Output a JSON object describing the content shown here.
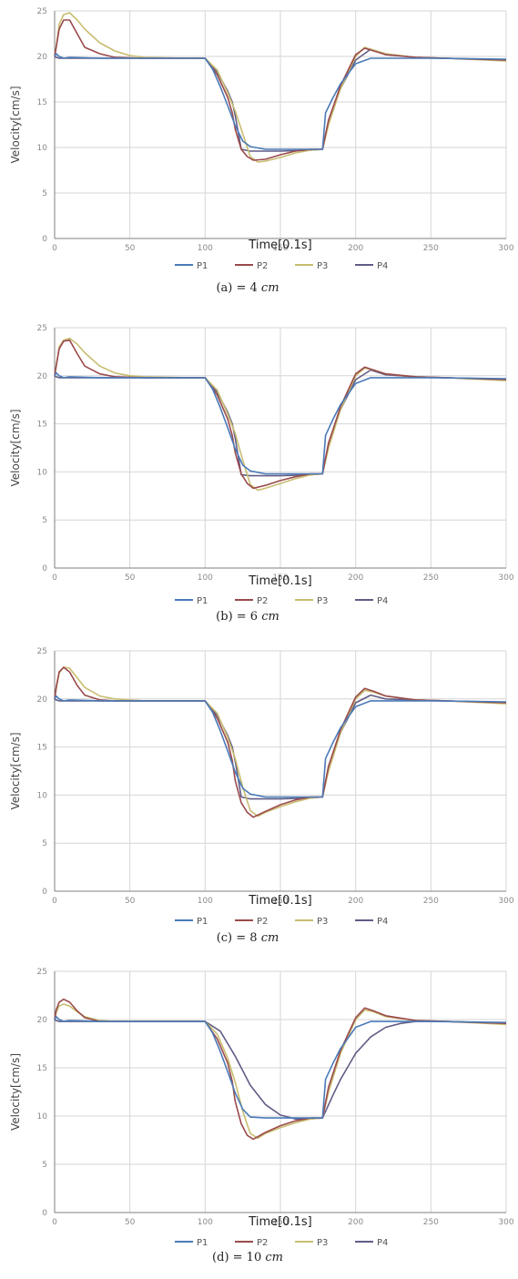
{
  "colors": {
    "P1": "#4a7ab8",
    "P2": "#9a4a4c",
    "P3": "#c8bd70",
    "P4": "#605d86",
    "grid": "#d6d6d6",
    "axis": "#7f7f7f",
    "tick_text": "#8a8a8a",
    "label_text": "#222222"
  },
  "chart_data": [
    {
      "type": "line",
      "caption": "(a)  = 4 𝑐𝑚",
      "xlabel": "Time[0.1s]",
      "ylabel": "Velocity[cm/s]",
      "xlim": [
        0,
        300
      ],
      "ylim": [
        0,
        25
      ],
      "xticks": [
        0,
        50,
        100,
        150,
        200,
        250,
        300
      ],
      "yticks": [
        0,
        5,
        10,
        15,
        20,
        25
      ],
      "grid": true,
      "legend_position": "bottom",
      "series": [
        {
          "name": "P1",
          "x": [
            0,
            1,
            3,
            6,
            10,
            30,
            60,
            90,
            100,
            105,
            110,
            115,
            120,
            125,
            130,
            140,
            150,
            160,
            170,
            178,
            180,
            185,
            190,
            200,
            210,
            250,
            300
          ],
          "y": [
            20,
            20.3,
            20,
            19.8,
            19.9,
            19.8,
            19.8,
            19.8,
            19.8,
            18.6,
            16.7,
            14.6,
            12.4,
            10.7,
            10.1,
            9.8,
            9.8,
            9.8,
            9.8,
            9.8,
            13.8,
            15.5,
            17,
            19.2,
            19.8,
            19.8,
            19.7
          ]
        },
        {
          "name": "P2",
          "x": [
            0,
            1,
            3,
            6,
            10,
            15,
            20,
            30,
            40,
            60,
            90,
            100,
            108,
            115,
            118,
            120,
            124,
            128,
            132,
            140,
            150,
            160,
            170,
            178,
            182,
            190,
            200,
            206,
            212,
            220,
            240,
            260,
            300
          ],
          "y": [
            20,
            21,
            23,
            24,
            24,
            22.5,
            21,
            20.3,
            19.9,
            19.8,
            19.8,
            19.8,
            18,
            15.5,
            13.8,
            12,
            9.8,
            9,
            8.6,
            8.7,
            9.2,
            9.6,
            9.8,
            9.8,
            13,
            16.8,
            20.2,
            20.9,
            20.6,
            20.2,
            19.9,
            19.8,
            19.6
          ]
        },
        {
          "name": "P3",
          "x": [
            0,
            1,
            3,
            6,
            10,
            15,
            20,
            30,
            40,
            50,
            60,
            90,
            100,
            108,
            115,
            120,
            125,
            130,
            135,
            140,
            150,
            160,
            170,
            178,
            182,
            190,
            200,
            206,
            212,
            220,
            240,
            260,
            300
          ],
          "y": [
            20,
            21,
            23.5,
            24.6,
            24.8,
            24,
            23,
            21.5,
            20.6,
            20.1,
            19.9,
            19.8,
            19.8,
            18.5,
            16,
            14,
            11.5,
            9,
            8.4,
            8.5,
            8.9,
            9.4,
            9.7,
            9.8,
            12.5,
            16.5,
            20,
            21,
            20.7,
            20.3,
            19.9,
            19.8,
            19.5
          ]
        },
        {
          "name": "P4",
          "x": [
            0,
            1,
            3,
            6,
            10,
            40,
            90,
            100,
            108,
            115,
            118,
            120,
            124,
            130,
            150,
            170,
            178,
            182,
            190,
            200,
            210,
            220,
            240,
            260,
            300
          ],
          "y": [
            20,
            19.9,
            19.8,
            19.8,
            19.8,
            19.8,
            19.8,
            19.8,
            18.3,
            16.2,
            15,
            13.5,
            9.8,
            9.6,
            9.6,
            9.7,
            9.8,
            13,
            16.5,
            19.6,
            20.8,
            20.2,
            19.9,
            19.8,
            19.6
          ]
        }
      ]
    },
    {
      "type": "line",
      "caption": "(b)  = 6 𝑐𝑚",
      "xlabel": "Time[0.1s]",
      "ylabel": "Velocity[cm/s]",
      "xlim": [
        0,
        300
      ],
      "ylim": [
        0,
        25
      ],
      "xticks": [
        0,
        50,
        100,
        150,
        200,
        250,
        300
      ],
      "yticks": [
        0,
        5,
        10,
        15,
        20,
        25
      ],
      "grid": true,
      "legend_position": "bottom",
      "series": [
        {
          "name": "P1",
          "x": [
            0,
            1,
            3,
            6,
            10,
            30,
            60,
            90,
            100,
            105,
            110,
            115,
            120,
            125,
            130,
            140,
            150,
            160,
            170,
            178,
            180,
            185,
            190,
            200,
            210,
            250,
            300
          ],
          "y": [
            20,
            20.3,
            20,
            19.8,
            19.9,
            19.8,
            19.8,
            19.8,
            19.8,
            18.6,
            16.7,
            14.6,
            12.4,
            10.7,
            10.1,
            9.8,
            9.8,
            9.8,
            9.8,
            9.8,
            13.8,
            15.5,
            17,
            19.2,
            19.8,
            19.8,
            19.7
          ]
        },
        {
          "name": "P2",
          "x": [
            0,
            1,
            3,
            6,
            10,
            15,
            20,
            30,
            40,
            60,
            90,
            100,
            108,
            115,
            118,
            120,
            124,
            128,
            132,
            140,
            150,
            160,
            170,
            178,
            182,
            190,
            200,
            206,
            212,
            220,
            240,
            260,
            300
          ],
          "y": [
            20,
            21,
            22.8,
            23.6,
            23.7,
            22.3,
            21,
            20.2,
            19.9,
            19.8,
            19.8,
            19.8,
            18,
            15.5,
            13.8,
            12,
            9.8,
            8.8,
            8.3,
            8.6,
            9.1,
            9.5,
            9.8,
            9.8,
            13,
            16.8,
            20.2,
            20.9,
            20.6,
            20.2,
            19.9,
            19.8,
            19.6
          ]
        },
        {
          "name": "P3",
          "x": [
            0,
            1,
            3,
            6,
            10,
            15,
            20,
            30,
            40,
            50,
            60,
            90,
            100,
            108,
            115,
            120,
            125,
            130,
            135,
            140,
            150,
            160,
            170,
            178,
            182,
            190,
            200,
            206,
            212,
            220,
            240,
            260,
            300
          ],
          "y": [
            20,
            21,
            23,
            23.7,
            23.9,
            23.3,
            22.4,
            21,
            20.3,
            20,
            19.9,
            19.8,
            19.8,
            18.5,
            16,
            14,
            11.2,
            8.7,
            8.1,
            8.3,
            8.8,
            9.3,
            9.7,
            9.8,
            12.5,
            16.5,
            20,
            20.8,
            20.6,
            20.2,
            19.9,
            19.8,
            19.5
          ]
        },
        {
          "name": "P4",
          "x": [
            0,
            1,
            3,
            6,
            10,
            40,
            90,
            100,
            108,
            115,
            118,
            120,
            124,
            130,
            150,
            170,
            178,
            182,
            190,
            200,
            210,
            220,
            240,
            260,
            300
          ],
          "y": [
            20,
            19.9,
            19.8,
            19.8,
            19.8,
            19.8,
            19.8,
            19.8,
            18.3,
            16.2,
            15,
            13.5,
            9.7,
            9.6,
            9.6,
            9.7,
            9.8,
            13,
            16.5,
            19.6,
            20.6,
            20.1,
            19.9,
            19.8,
            19.6
          ]
        }
      ]
    },
    {
      "type": "line",
      "caption": "(c)  = 8 𝑐𝑚",
      "xlabel": "Time[0.1s]",
      "ylabel": "Velocity[cm/s]",
      "xlim": [
        0,
        300
      ],
      "ylim": [
        0,
        25
      ],
      "xticks": [
        0,
        50,
        100,
        150,
        200,
        250,
        300
      ],
      "yticks": [
        0,
        5,
        10,
        15,
        20,
        25
      ],
      "grid": true,
      "legend_position": "bottom",
      "series": [
        {
          "name": "P1",
          "x": [
            0,
            1,
            3,
            6,
            10,
            30,
            60,
            90,
            100,
            105,
            110,
            115,
            120,
            125,
            130,
            140,
            150,
            160,
            170,
            178,
            180,
            185,
            190,
            200,
            210,
            250,
            300
          ],
          "y": [
            20,
            20.3,
            20,
            19.8,
            19.9,
            19.8,
            19.8,
            19.8,
            19.8,
            18.6,
            16.7,
            14.6,
            12.4,
            10.7,
            10.1,
            9.8,
            9.8,
            9.8,
            9.8,
            9.8,
            13.8,
            15.5,
            17,
            19.2,
            19.8,
            19.8,
            19.7
          ]
        },
        {
          "name": "P2",
          "x": [
            0,
            1,
            3,
            6,
            10,
            15,
            20,
            30,
            40,
            60,
            90,
            100,
            108,
            115,
            118,
            120,
            124,
            128,
            132,
            140,
            150,
            160,
            170,
            178,
            182,
            190,
            200,
            206,
            212,
            220,
            240,
            260,
            300
          ],
          "y": [
            20,
            21.2,
            22.8,
            23.3,
            22.8,
            21.4,
            20.4,
            19.9,
            19.8,
            19.8,
            19.8,
            19.8,
            18,
            15.5,
            13.6,
            11.5,
            9.2,
            8.2,
            7.7,
            8.3,
            9.0,
            9.5,
            9.8,
            9.8,
            13,
            16.8,
            20.2,
            21.1,
            20.8,
            20.3,
            19.9,
            19.8,
            19.6
          ]
        },
        {
          "name": "P3",
          "x": [
            0,
            1,
            3,
            6,
            10,
            15,
            20,
            30,
            40,
            50,
            60,
            90,
            100,
            108,
            115,
            120,
            125,
            130,
            135,
            140,
            150,
            160,
            170,
            178,
            182,
            190,
            200,
            206,
            212,
            220,
            240,
            260,
            300
          ],
          "y": [
            20,
            21,
            22.7,
            23.3,
            23.2,
            22.2,
            21.2,
            20.3,
            20,
            19.9,
            19.8,
            19.8,
            19.8,
            18.5,
            16,
            13.8,
            10.8,
            8.4,
            7.8,
            8.2,
            8.8,
            9.3,
            9.7,
            9.8,
            12.5,
            16.5,
            20,
            20.9,
            20.7,
            20.3,
            19.9,
            19.8,
            19.5
          ]
        },
        {
          "name": "P4",
          "x": [
            0,
            1,
            3,
            6,
            10,
            40,
            90,
            100,
            108,
            115,
            118,
            120,
            124,
            130,
            150,
            170,
            178,
            182,
            190,
            200,
            210,
            220,
            240,
            260,
            300
          ],
          "y": [
            20,
            19.9,
            19.8,
            19.8,
            19.8,
            19.8,
            19.8,
            19.8,
            18.3,
            16.2,
            15,
            13.5,
            9.8,
            9.6,
            9.6,
            9.7,
            9.8,
            13,
            16.5,
            19.6,
            20.4,
            20.0,
            19.9,
            19.8,
            19.6
          ]
        }
      ]
    },
    {
      "type": "line",
      "caption": "(d)  = 10 𝑐𝑚",
      "xlabel": "Time[0.1s]",
      "ylabel": "Velocity[cm/s]",
      "xlim": [
        0,
        300
      ],
      "ylim": [
        0,
        25
      ],
      "xticks": [
        0,
        50,
        100,
        150,
        200,
        250,
        300
      ],
      "yticks": [
        0,
        5,
        10,
        15,
        20,
        25
      ],
      "grid": true,
      "legend_position": "bottom",
      "series": [
        {
          "name": "P1",
          "x": [
            0,
            1,
            3,
            6,
            10,
            30,
            60,
            90,
            100,
            105,
            110,
            115,
            120,
            125,
            130,
            140,
            150,
            160,
            170,
            178,
            180,
            185,
            190,
            200,
            210,
            250,
            300
          ],
          "y": [
            20,
            20.3,
            20,
            19.8,
            19.9,
            19.8,
            19.8,
            19.8,
            19.8,
            18.6,
            16.7,
            14.6,
            12.4,
            10.7,
            9.9,
            9.8,
            9.8,
            9.8,
            9.8,
            9.8,
            13.8,
            15.5,
            17,
            19.2,
            19.8,
            19.8,
            19.7
          ]
        },
        {
          "name": "P2",
          "x": [
            0,
            1,
            3,
            6,
            10,
            15,
            20,
            30,
            40,
            60,
            90,
            100,
            108,
            115,
            118,
            120,
            124,
            128,
            132,
            140,
            150,
            160,
            170,
            178,
            182,
            190,
            200,
            206,
            212,
            220,
            240,
            260,
            300
          ],
          "y": [
            20,
            21,
            21.8,
            22.1,
            21.8,
            20.9,
            20.2,
            19.8,
            19.8,
            19.8,
            19.8,
            19.8,
            18,
            15.5,
            13.6,
            11.5,
            9.2,
            8.0,
            7.6,
            8.3,
            9.0,
            9.5,
            9.8,
            9.8,
            13,
            16.8,
            20.2,
            21.2,
            20.9,
            20.4,
            19.9,
            19.8,
            19.6
          ]
        },
        {
          "name": "P3",
          "x": [
            0,
            1,
            3,
            6,
            10,
            15,
            20,
            30,
            40,
            50,
            60,
            90,
            100,
            108,
            115,
            120,
            125,
            130,
            135,
            140,
            150,
            160,
            170,
            178,
            182,
            190,
            200,
            206,
            212,
            220,
            240,
            260,
            300
          ],
          "y": [
            20,
            20.7,
            21.4,
            21.6,
            21.4,
            20.8,
            20.3,
            19.9,
            19.8,
            19.8,
            19.8,
            19.8,
            19.8,
            18.5,
            16,
            13.5,
            10.5,
            8.2,
            7.7,
            8.2,
            8.8,
            9.3,
            9.7,
            9.8,
            12.5,
            16.5,
            20,
            21,
            20.8,
            20.3,
            19.9,
            19.8,
            19.5
          ]
        },
        {
          "name": "P4",
          "x": [
            0,
            1,
            3,
            6,
            10,
            40,
            90,
            100,
            110,
            120,
            130,
            140,
            150,
            160,
            170,
            178,
            185,
            190,
            200,
            210,
            220,
            230,
            240,
            260,
            300
          ],
          "y": [
            20,
            19.9,
            19.8,
            19.8,
            19.8,
            19.8,
            19.8,
            19.8,
            18.8,
            16.2,
            13.2,
            11.2,
            10.1,
            9.7,
            9.7,
            9.8,
            12.2,
            13.8,
            16.5,
            18.2,
            19.2,
            19.6,
            19.8,
            19.8,
            19.6
          ]
        }
      ]
    }
  ]
}
